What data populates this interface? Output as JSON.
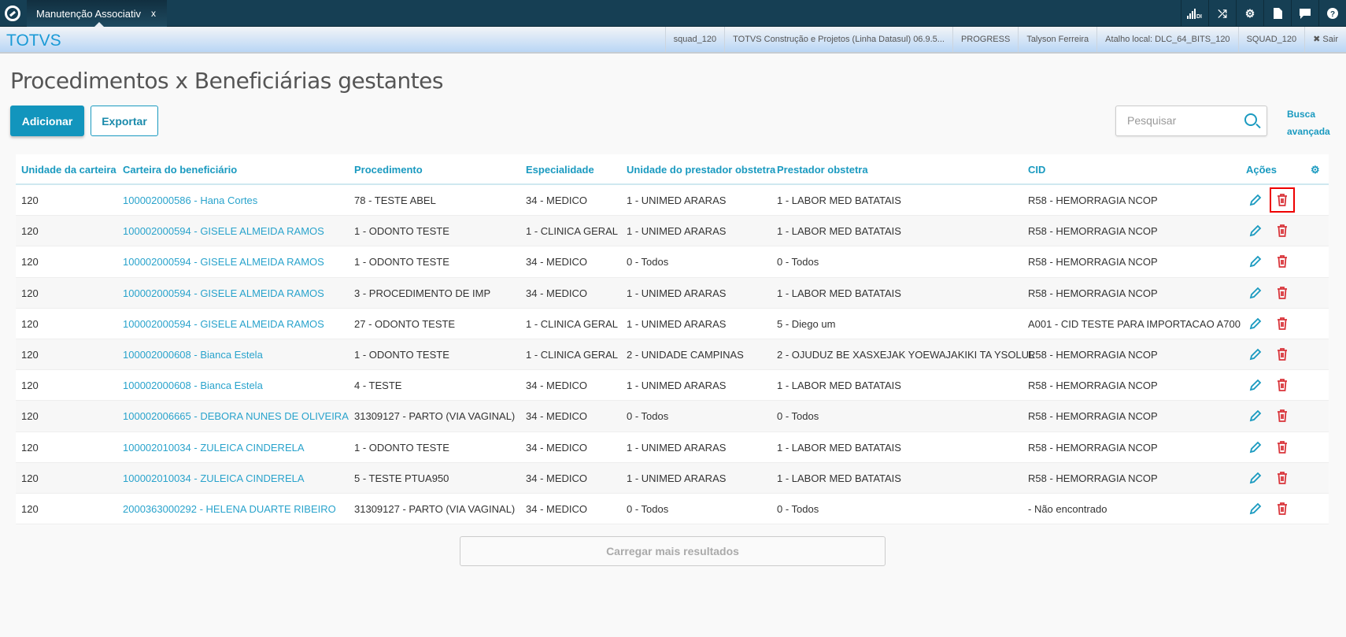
{
  "topbar": {
    "tab_title": "Manutenção Associativ",
    "tab_close": "x",
    "icons": [
      "signal-icon",
      "shuffle-icon",
      "gear-icon",
      "document-icon",
      "chat-icon",
      "help-icon"
    ],
    "signal_label": "DI"
  },
  "infobar": {
    "brand": "TOTVS",
    "items": [
      "squad_120",
      "TOTVS Construção e Projetos (Linha Datasul) 06.9.5...",
      "PROGRESS",
      "Talyson Ferreira",
      "Atalho local: DLC_64_BITS_120",
      "SQUAD_120"
    ],
    "logout": "✖ Sair"
  },
  "page": {
    "title": "Procedimentos x Beneficiárias gestantes",
    "add_label": "Adicionar",
    "export_label": "Exportar",
    "search_placeholder": "Pesquisar",
    "advanced_search": "Busca avançada",
    "load_more": "Carregar mais resultados"
  },
  "colors": {
    "accent": "#1a9ac0",
    "primary": "#1295bd",
    "danger": "#d9343a",
    "topbar": "#163f54"
  },
  "table": {
    "columns": [
      "Unidade da carteira",
      "Carteira do beneficiário",
      "Procedimento",
      "Especialidade",
      "Unidade do prestador obstetra",
      "Prestador obstetra",
      "CID",
      "Ações"
    ],
    "rows": [
      [
        "120",
        "100002000586 - Hana Cortes",
        "78 - TESTE ABEL",
        "34 - MEDICO",
        "1 - UNIMED ARARAS",
        "1 - LABOR MED BATATAIS",
        "R58 - HEMORRAGIA NCOP"
      ],
      [
        "120",
        "100002000594 - GISELE ALMEIDA RAMOS",
        "1 - ODONTO TESTE",
        "1 - CLINICA GERAL",
        "1 - UNIMED ARARAS",
        "1 - LABOR MED BATATAIS",
        "R58 - HEMORRAGIA NCOP"
      ],
      [
        "120",
        "100002000594 - GISELE ALMEIDA RAMOS",
        "1 - ODONTO TESTE",
        "34 - MEDICO",
        "0 - Todos",
        "0 - Todos",
        "R58 - HEMORRAGIA NCOP"
      ],
      [
        "120",
        "100002000594 - GISELE ALMEIDA RAMOS",
        "3 - PROCEDIMENTO DE IMP",
        "34 - MEDICO",
        "1 - UNIMED ARARAS",
        "1 - LABOR MED BATATAIS",
        "R58 - HEMORRAGIA NCOP"
      ],
      [
        "120",
        "100002000594 - GISELE ALMEIDA RAMOS",
        "27 - ODONTO TESTE",
        "1 - CLINICA GERAL",
        "1 - UNIMED ARARAS",
        "5 - Diego um",
        "A001 - CID TESTE PARA IMPORTACAO A700"
      ],
      [
        "120",
        "100002000608 - Bianca Estela",
        "1 - ODONTO TESTE",
        "1 - CLINICA GERAL",
        "2 - UNIDADE CAMPINAS",
        "2 - OJUDUZ BE XASXEJAK YOEWAJAKIKI TA YSOLUL",
        "R58 - HEMORRAGIA NCOP"
      ],
      [
        "120",
        "100002000608 - Bianca Estela",
        "4 - TESTE",
        "34 - MEDICO",
        "1 - UNIMED ARARAS",
        "1 - LABOR MED BATATAIS",
        "R58 - HEMORRAGIA NCOP"
      ],
      [
        "120",
        "100002006665 - DEBORA NUNES DE OLIVEIRA",
        "31309127 - PARTO (VIA VAGINAL)",
        "34 - MEDICO",
        "0 - Todos",
        "0 - Todos",
        "R58 - HEMORRAGIA NCOP"
      ],
      [
        "120",
        "100002010034 - ZULEICA CINDERELA",
        "1 - ODONTO TESTE",
        "34 - MEDICO",
        "1 - UNIMED ARARAS",
        "1 - LABOR MED BATATAIS",
        "R58 - HEMORRAGIA NCOP"
      ],
      [
        "120",
        "100002010034 - ZULEICA CINDERELA",
        "5 - TESTE PTUA950",
        "34 - MEDICO",
        "1 - UNIMED ARARAS",
        "1 - LABOR MED BATATAIS",
        "R58 - HEMORRAGIA NCOP"
      ],
      [
        "120",
        "2000363000292 - HELENA DUARTE RIBEIRO",
        "31309127 - PARTO (VIA VAGINAL)",
        "34 - MEDICO",
        "0 - Todos",
        "0 - Todos",
        "- Não encontrado"
      ]
    ],
    "highlighted_action": {
      "row": 0,
      "action": "delete"
    }
  }
}
